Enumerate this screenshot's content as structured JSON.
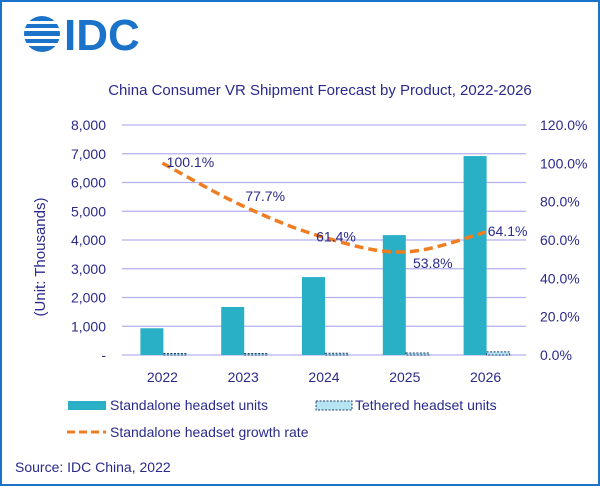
{
  "brand": {
    "logo_text": "IDC",
    "color": "#1a73c8"
  },
  "source": "Source: IDC China, 2022",
  "colors": {
    "text": "#2a2a8c",
    "grid": "#b3b0ee",
    "standalone": "#2ab0c6",
    "tethered_fill": "#b6e4f2",
    "tethered_border": "#1c3f6e",
    "growth": "#ef7d22"
  },
  "chart_data": {
    "type": "bar",
    "title": "China Consumer VR Shipment Forecast by Product, 2022-2026",
    "xlabel": "",
    "ylabel": "(Unit: Thousands)",
    "ylim": [
      0,
      8000
    ],
    "y_ticks": [
      "-",
      "1,000",
      "2,000",
      "3,000",
      "4,000",
      "5,000",
      "6,000",
      "7,000",
      "8,000"
    ],
    "y2lim": [
      0,
      120
    ],
    "y2_ticks": [
      "0.0%",
      "20.0%",
      "40.0%",
      "60.0%",
      "80.0%",
      "100.0%",
      "120.0%"
    ],
    "grid": true,
    "legend_position": "bottom",
    "categories": [
      "2022",
      "2023",
      "2024",
      "2025",
      "2026"
    ],
    "series": [
      {
        "name": "Standalone headset units",
        "type": "bar",
        "axis": "left",
        "values": [
          930,
          1670,
          2710,
          4170,
          6920
        ]
      },
      {
        "name": "Tethered headset units",
        "type": "bar",
        "axis": "left",
        "values": [
          40,
          40,
          60,
          70,
          110
        ]
      },
      {
        "name": "Standalone headset growth rate",
        "type": "line",
        "style": "dashed",
        "axis": "right",
        "values": [
          100.1,
          77.7,
          61.4,
          53.8,
          64.1
        ],
        "labels": [
          "100.1%",
          "77.7%",
          "61.4%",
          "53.8%",
          "64.1%"
        ]
      }
    ]
  }
}
